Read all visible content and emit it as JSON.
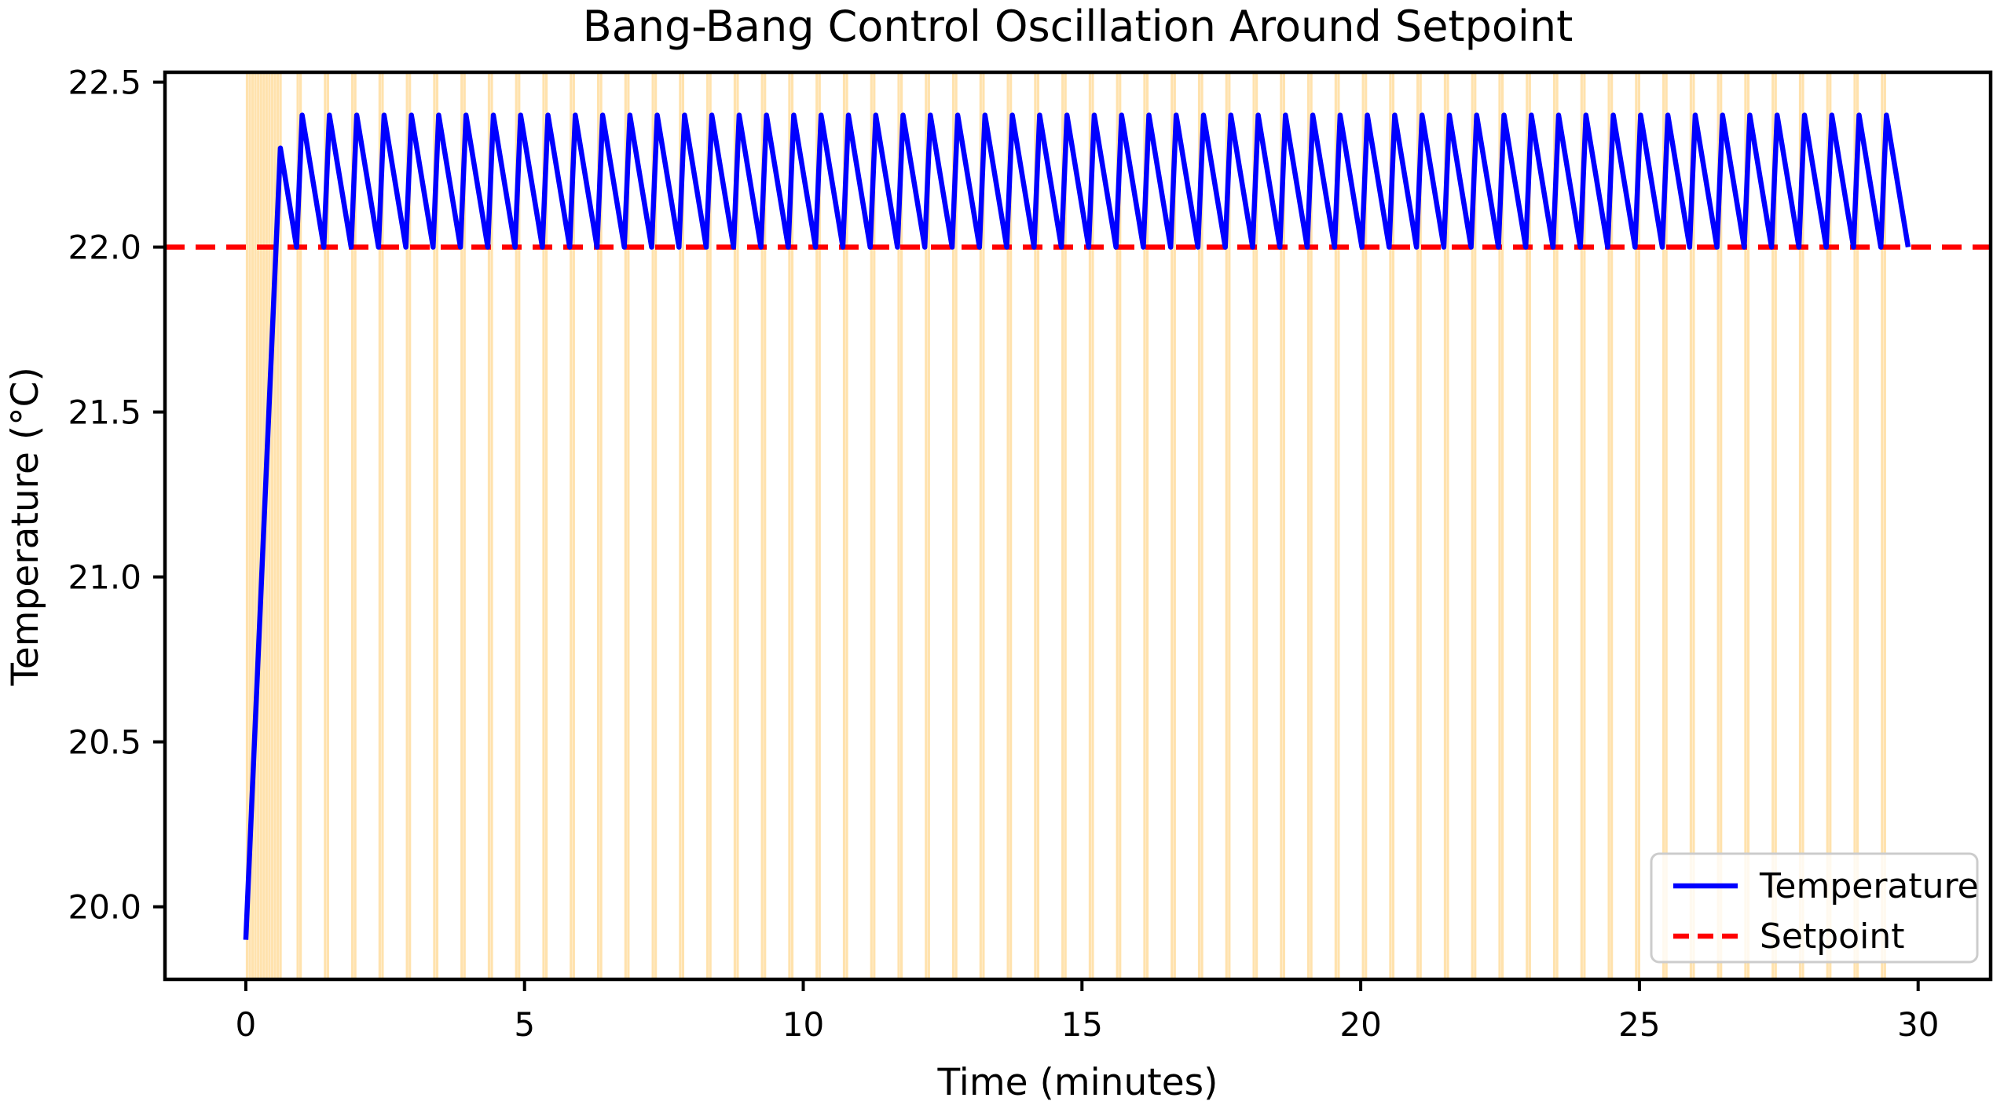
{
  "chart_data": {
    "type": "line",
    "title": "Bang-Bang Control Oscillation Around Setpoint",
    "xlabel": "Time (minutes)",
    "ylabel": "Temperature (°C)",
    "xlim": [
      -1.45,
      31.3
    ],
    "ylim": [
      19.78,
      22.53
    ],
    "xticks": [
      0,
      5,
      10,
      15,
      20,
      25,
      30
    ],
    "xtick_labels": [
      "0",
      "5",
      "10",
      "15",
      "20",
      "25",
      "30"
    ],
    "yticks": [
      20.0,
      20.5,
      21.0,
      21.5,
      22.0,
      22.5
    ],
    "ytick_labels": [
      "20.0",
      "20.5",
      "21.0",
      "21.5",
      "22.0",
      "22.5"
    ],
    "grid": false,
    "setpoint": 22.0,
    "series": [
      {
        "name": "Temperature",
        "color": "#0000ff",
        "style": "solid",
        "linewidth": 6.5
      },
      {
        "name": "Setpoint",
        "color": "#ff0000",
        "style": "dashed",
        "linewidth": 6.5
      }
    ],
    "temperature_profile": {
      "start": {
        "t": 0.0,
        "temp": 19.9
      },
      "initial_peak": {
        "t": 0.62,
        "temp": 22.3
      },
      "first_trough": {
        "t": 0.91,
        "temp": 22.0
      },
      "cycle": {
        "period": 0.49,
        "rise_duration": 0.1,
        "peak_temp": 22.4,
        "trough_temp": 22.0,
        "num_cycles": 59
      },
      "end": {
        "t": 29.82,
        "temp": 22.0
      }
    },
    "heater_bands": {
      "color": "#FFA500",
      "opacity": 0.32,
      "stripe_width_min": 0.045,
      "sample_interval_min": 0.05,
      "initial_burst": {
        "t_start": 0.0,
        "t_end": 0.6,
        "stripes": 13
      },
      "per_cycle_stripes": 2
    },
    "legend": {
      "position": "lower right",
      "entries": [
        {
          "label": "Temperature",
          "color": "#0000ff",
          "style": "solid"
        },
        {
          "label": "Setpoint",
          "color": "#ff0000",
          "style": "dashed"
        }
      ],
      "border_color": "#cccccc",
      "background": "rgba(255,255,255,0.8)"
    },
    "colors": {
      "spine": "#000000",
      "background": "#ffffff"
    }
  }
}
